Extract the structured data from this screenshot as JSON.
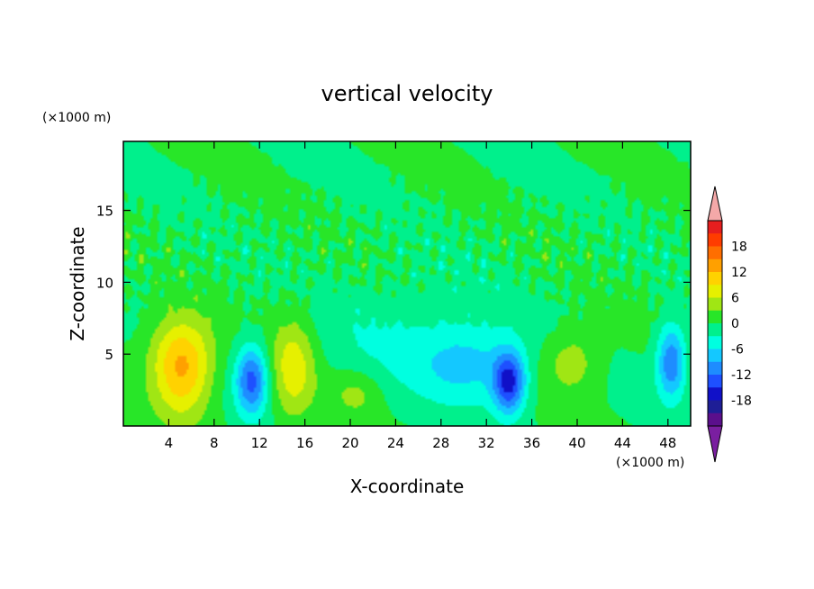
{
  "chart_data": {
    "type": "heatmap",
    "title": "vertical velocity",
    "xlabel": "X-coordinate",
    "ylabel": "Z-coordinate",
    "x_unit": "(×1000 m)",
    "y_unit": "(×1000 m)",
    "xlim": [
      0,
      50
    ],
    "ylim": [
      0,
      19.8
    ],
    "x_ticks": [
      "4",
      "8",
      "12",
      "16",
      "20",
      "24",
      "28",
      "32",
      "36",
      "40",
      "44",
      "48"
    ],
    "y_ticks": [
      "5",
      "10",
      "15"
    ],
    "colorbar": {
      "ticks": [
        "18",
        "12",
        "6",
        "0",
        "-6",
        "-12",
        "-18"
      ],
      "levels": [
        -21,
        -18,
        -15,
        -12,
        -9,
        -6,
        -3,
        0,
        3,
        6,
        9,
        12,
        15,
        18,
        21
      ],
      "colors": [
        "#5b0f8c",
        "#1e1e96",
        "#1010c8",
        "#1e50ff",
        "#1e8cff",
        "#14c8ff",
        "#00ffe0",
        "#00f08c",
        "#28e628",
        "#a0e614",
        "#e6f000",
        "#ffd200",
        "#ffa000",
        "#ff6e00",
        "#ff3c00",
        "#e61e1e"
      ],
      "under_color": "#7a1fa0",
      "over_color": "#f4a8a8"
    },
    "cells": [
      {
        "x": 5.2,
        "z": 3.5,
        "w": 10,
        "sx": 1.8,
        "sz": 2.2
      },
      {
        "x": 5.0,
        "z": 5.5,
        "w": 5,
        "sx": 2.0,
        "sz": 1.8
      },
      {
        "x": 11.3,
        "z": 3.2,
        "w": -13,
        "sx": 1.0,
        "sz": 1.7
      },
      {
        "x": 15.0,
        "z": 4.0,
        "w": 8,
        "sx": 1.4,
        "sz": 2.6
      },
      {
        "x": 20.5,
        "z": 2.3,
        "w": 4,
        "sx": 1.6,
        "sz": 1.2
      },
      {
        "x": 30.5,
        "z": 4.3,
        "w": -6,
        "sx": 3.0,
        "sz": 1.8
      },
      {
        "x": 34.0,
        "z": 3.0,
        "w": -15,
        "sx": 1.0,
        "sz": 1.5
      },
      {
        "x": 39.5,
        "z": 4.5,
        "w": 5,
        "sx": 1.8,
        "sz": 1.6
      },
      {
        "x": 48.3,
        "z": 4.5,
        "w": -12,
        "sx": 0.9,
        "sz": 1.8
      },
      {
        "x": 25.0,
        "z": 6.0,
        "w": -3,
        "sx": 6.0,
        "sz": 3.0
      }
    ]
  }
}
